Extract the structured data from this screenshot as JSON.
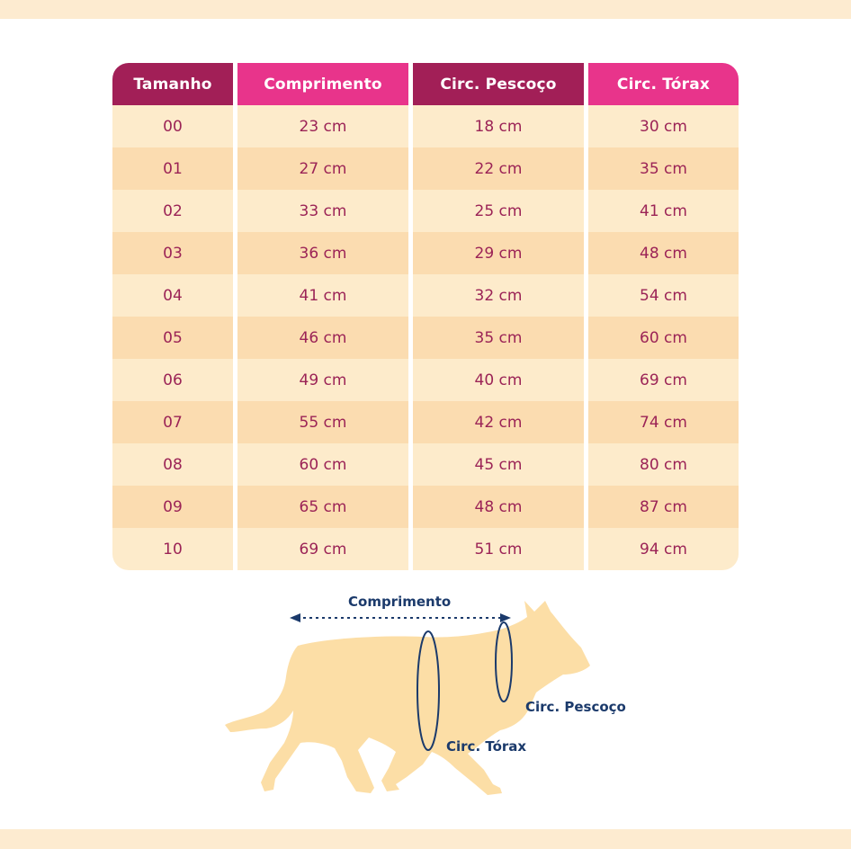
{
  "table": {
    "headers": [
      "Tamanho",
      "Comprimento",
      "Circ. Pescoço",
      "Circ. Tórax"
    ],
    "header_colors": [
      "#a21f57",
      "#e8348b",
      "#a21f57",
      "#e8348b"
    ],
    "rows": [
      [
        "00",
        "23 cm",
        "18 cm",
        "30 cm"
      ],
      [
        "01",
        "27 cm",
        "22 cm",
        "35 cm"
      ],
      [
        "02",
        "33 cm",
        "25 cm",
        "41 cm"
      ],
      [
        "03",
        "36 cm",
        "29 cm",
        "48 cm"
      ],
      [
        "04",
        "41 cm",
        "32 cm",
        "54 cm"
      ],
      [
        "05",
        "46 cm",
        "35 cm",
        "60 cm"
      ],
      [
        "06",
        "49 cm",
        "40 cm",
        "69 cm"
      ],
      [
        "07",
        "55 cm",
        "42 cm",
        "74 cm"
      ],
      [
        "08",
        "60 cm",
        "45 cm",
        "80 cm"
      ],
      [
        "09",
        "65 cm",
        "48 cm",
        "87 cm"
      ],
      [
        "10",
        "69 cm",
        "51 cm",
        "94 cm"
      ]
    ]
  },
  "diagram": {
    "length_label": "Comprimento",
    "neck_label": "Circ. Pescoço",
    "chest_label": "Circ. Tórax",
    "dog_color": "#fcdea6",
    "line_color": "#1b3a6b"
  }
}
